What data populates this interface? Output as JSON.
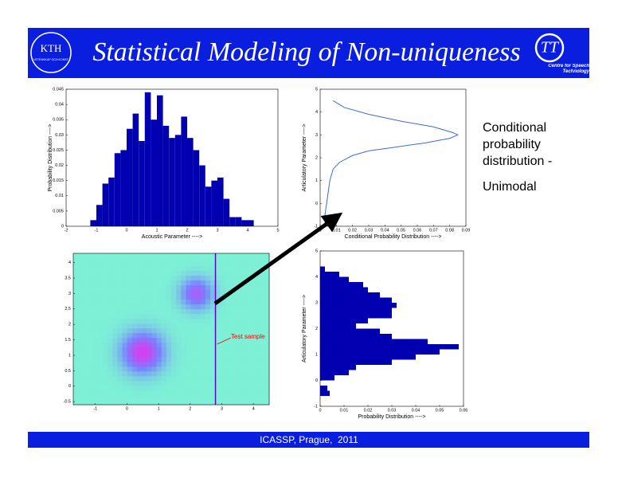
{
  "header": {
    "title": "Statistical Modeling of Non-uniqueness",
    "logo_left": "KTH",
    "logo_left_motto": "VETENSKAP OCH KONST",
    "logo_right": "Centre for Speech Technology"
  },
  "side_text": {
    "line1": "Conditional probability distribution -",
    "line2": "Unimodal"
  },
  "footer": "ICASSP, Prague,  2011",
  "chart_data": [
    {
      "type": "histogram",
      "orientation": "vertical",
      "color": "#0000b0",
      "xlabel": "Acoustic Parameter ---->",
      "ylabel": "Probability Distribution ---->",
      "bins": [
        -1.2,
        -1,
        -0.8,
        -0.6,
        -0.4,
        -0.2,
        0,
        0.2,
        0.4,
        0.6,
        0.8,
        1,
        1.2,
        1.4,
        1.6,
        1.8,
        2,
        2.2,
        2.4,
        2.6,
        2.8,
        3,
        3.2,
        3.4,
        3.6,
        3.8,
        4,
        4.2
      ],
      "values": [
        0.002,
        0.007,
        0.014,
        0.016,
        0.024,
        0.025,
        0.032,
        0.037,
        0.028,
        0.044,
        0.035,
        0.043,
        0.033,
        0.029,
        0.03,
        0.036,
        0.029,
        0.025,
        0.02,
        0.013,
        0.015,
        0.016,
        0.009,
        0.003,
        0.003,
        0.002,
        0.002
      ],
      "xlim": [
        -2,
        5
      ],
      "xticks": [
        -2,
        -1,
        0,
        1,
        2,
        3,
        4,
        5
      ],
      "ylim": [
        0,
        0.045
      ],
      "yticks": [
        0,
        0.005,
        0.01,
        0.015,
        0.02,
        0.025,
        0.03,
        0.035,
        0.04,
        0.045
      ]
    },
    {
      "type": "line",
      "color": "#3a6be0",
      "xlabel": "Conditional Probability Distribution ---->",
      "ylabel": "Articulatory Parameter ---->",
      "x": [
        0.008,
        0.015,
        0.03,
        0.05,
        0.07,
        0.082,
        0.085,
        0.08,
        0.065,
        0.045,
        0.03,
        0.02,
        0.012,
        0.008,
        0.006,
        0.005,
        0.004,
        0.003,
        0.003
      ],
      "values": [
        4.5,
        4.2,
        3.9,
        3.6,
        3.35,
        3.1,
        3.0,
        2.85,
        2.65,
        2.45,
        2.3,
        2.1,
        1.8,
        1.5,
        1,
        0.5,
        0,
        -0.5,
        -1
      ],
      "xlim": [
        0,
        0.09
      ],
      "xticks": [
        0,
        0.01,
        0.02,
        0.03,
        0.04,
        0.05,
        0.06,
        0.07,
        0.08,
        0.09
      ],
      "ylim": [
        -1,
        5
      ],
      "yticks": [
        -1,
        0,
        1,
        2,
        3,
        4,
        5
      ]
    },
    {
      "type": "heatmap",
      "components": [
        {
          "mean": [
            0.5,
            1.1
          ],
          "sd": 0.45,
          "weight": 1
        },
        {
          "mean": [
            2.2,
            3.0
          ],
          "sd": 0.35,
          "weight": 0.75
        }
      ],
      "vline": 2.8,
      "vline_color": "#6600cc",
      "annotation": "Test sample",
      "annotation_color": "#ff0000",
      "xlim": [
        -1.7,
        4.5
      ],
      "xticks": [
        -1,
        0,
        1,
        2,
        3,
        4
      ],
      "ylim": [
        -0.6,
        4.3
      ],
      "yticks": [
        -0.5,
        0,
        0.5,
        1,
        1.5,
        2,
        2.5,
        3,
        3.5,
        4
      ]
    },
    {
      "type": "histogram",
      "orientation": "horizontal",
      "color": "#0000b0",
      "xlabel": "Probability Distribution ---->",
      "ylabel": "Articulatory Parameter ---->",
      "bins": [
        -0.6,
        -0.4,
        -0.2,
        0,
        0.2,
        0.4,
        0.6,
        0.8,
        1,
        1.2,
        1.4,
        1.6,
        1.8,
        2,
        2.2,
        2.4,
        2.6,
        2.8,
        3,
        3.2,
        3.4,
        3.6,
        3.8,
        4,
        4.2,
        4.4
      ],
      "values": [
        0.004,
        0.003,
        0,
        0.006,
        0.012,
        0.015,
        0.03,
        0.04,
        0.05,
        0.058,
        0.045,
        0.03,
        0.025,
        0.015,
        0.02,
        0.03,
        0.03,
        0.032,
        0.03,
        0.025,
        0.02,
        0.018,
        0.012,
        0.008,
        0.002
      ],
      "xlim": [
        0,
        0.06
      ],
      "xticks": [
        0,
        0.01,
        0.02,
        0.03,
        0.04,
        0.05,
        0.06
      ],
      "ylim": [
        -1,
        5
      ],
      "yticks": [
        -1,
        0,
        1,
        2,
        3,
        4,
        5
      ]
    }
  ]
}
